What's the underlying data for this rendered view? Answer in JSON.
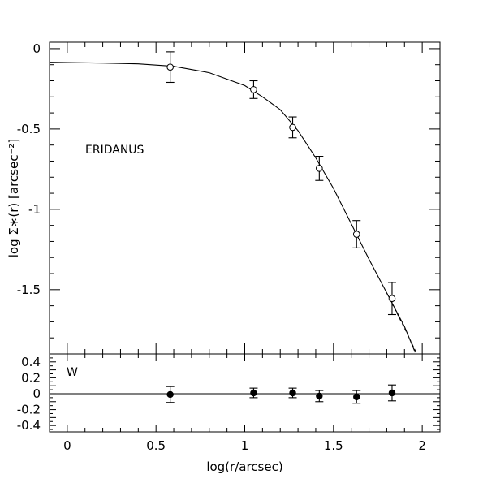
{
  "chart_data": [
    {
      "type": "scatter",
      "panel": "main",
      "annotation": "ERIDANUS",
      "xlabel": "log(r/arcsec)",
      "ylabel": "log Σ∗(r) [arcsec⁻²]",
      "xlim": [
        -0.1,
        2.1
      ],
      "ylim": [
        -1.9,
        0.04
      ],
      "y_ticks": [
        "0",
        "-0.5",
        "-1",
        "-1.5"
      ],
      "marker": "open-circle",
      "points": [
        {
          "x": 0.58,
          "y": -0.115,
          "err": 0.095
        },
        {
          "x": 1.05,
          "y": -0.255,
          "err": 0.055
        },
        {
          "x": 1.27,
          "y": -0.49,
          "err": 0.065
        },
        {
          "x": 1.42,
          "y": -0.745,
          "err": 0.075
        },
        {
          "x": 1.63,
          "y": -1.155,
          "err": 0.085
        },
        {
          "x": 1.83,
          "y": -1.555,
          "err": 0.1
        }
      ],
      "series": [
        {
          "style": "solid",
          "x": [
            -0.1,
            0.0,
            0.2,
            0.4,
            0.6,
            0.8,
            1.0,
            1.1,
            1.2,
            1.3,
            1.4,
            1.5,
            1.6,
            1.7,
            1.8,
            1.9,
            1.96
          ],
          "y": [
            -0.085,
            -0.087,
            -0.09,
            -0.095,
            -0.11,
            -0.15,
            -0.23,
            -0.3,
            -0.38,
            -0.51,
            -0.68,
            -0.87,
            -1.09,
            -1.31,
            -1.52,
            -1.73,
            -1.89
          ]
        },
        {
          "style": "dashed",
          "x": [
            1.8,
            1.9,
            1.97
          ],
          "y": [
            -1.52,
            -1.74,
            -1.9
          ]
        }
      ]
    },
    {
      "type": "scatter",
      "panel": "residual",
      "annotation": "W",
      "xlabel": "log(r/arcsec)",
      "xlim": [
        -0.1,
        2.1
      ],
      "ylim": [
        -0.48,
        0.5
      ],
      "x_ticks": [
        "0",
        "0.5",
        "1",
        "1.5",
        "2"
      ],
      "y_ticks": [
        "0.4",
        "0.2",
        "0",
        "-0.2",
        "-0.4"
      ],
      "marker": "filled-circle",
      "reference_line": 0,
      "points": [
        {
          "x": 0.58,
          "y": -0.01,
          "err": 0.1
        },
        {
          "x": 1.05,
          "y": 0.01,
          "err": 0.06
        },
        {
          "x": 1.27,
          "y": 0.01,
          "err": 0.06
        },
        {
          "x": 1.42,
          "y": -0.03,
          "err": 0.07
        },
        {
          "x": 1.63,
          "y": -0.04,
          "err": 0.08
        },
        {
          "x": 1.83,
          "y": 0.01,
          "err": 0.1
        }
      ]
    }
  ]
}
